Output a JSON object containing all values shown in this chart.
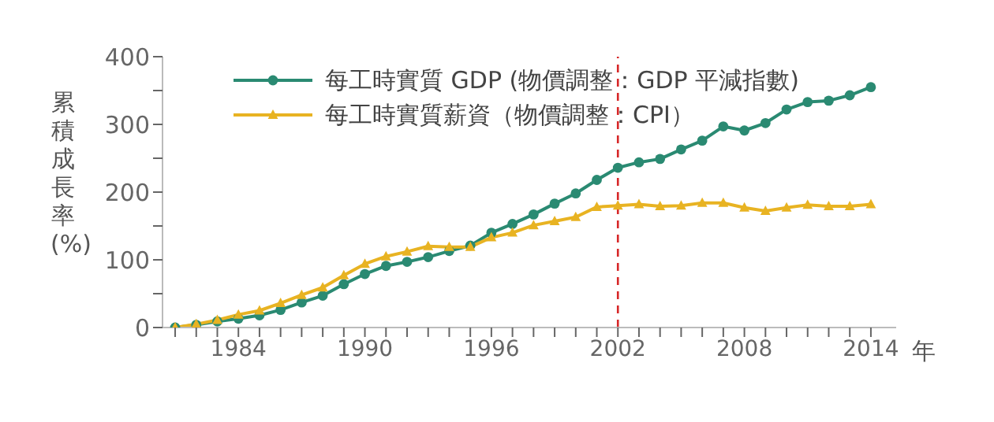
{
  "chart_data": {
    "type": "line",
    "x": [
      1981,
      1982,
      1983,
      1984,
      1985,
      1986,
      1987,
      1988,
      1989,
      1990,
      1991,
      1992,
      1993,
      1994,
      1995,
      1996,
      1997,
      1998,
      1999,
      2000,
      2001,
      2002,
      2003,
      2004,
      2005,
      2006,
      2007,
      2008,
      2009,
      2010,
      2011,
      2012,
      2013,
      2014
    ],
    "series": [
      {
        "name": "每工時實質 GDP (物價調整：GDP 平減指數)",
        "color": "#2a8a72",
        "marker": "circle",
        "values": [
          0,
          4,
          9,
          13,
          18,
          26,
          37,
          47,
          64,
          79,
          91,
          97,
          104,
          113,
          121,
          140,
          153,
          167,
          183,
          198,
          218,
          236,
          244,
          249,
          263,
          276,
          297,
          291,
          302,
          322,
          333,
          335,
          343,
          355
        ]
      },
      {
        "name": "每工時實質薪資（物價調整：CPI）",
        "color": "#e8b322",
        "marker": "triangle",
        "values": [
          0,
          5,
          11,
          19,
          25,
          36,
          48,
          59,
          77,
          94,
          105,
          112,
          120,
          119,
          119,
          133,
          140,
          151,
          157,
          163,
          178,
          180,
          182,
          179,
          180,
          184,
          184,
          177,
          172,
          177,
          181,
          179,
          179,
          182
        ]
      }
    ],
    "xlabel": "年",
    "ylabel": "累積成長率 (%)",
    "xlim": [
      1980.4,
      2015.2
    ],
    "xticks": [
      {
        "value": 1981,
        "label": null
      },
      {
        "value": 1982,
        "label": null
      },
      {
        "value": 1983,
        "label": null
      },
      1984,
      {
        "value": 1985,
        "label": null
      },
      {
        "value": 1986,
        "label": null
      },
      {
        "value": 1987,
        "label": null
      },
      {
        "value": 1988,
        "label": null
      },
      {
        "value": 1989,
        "label": null
      },
      1990,
      {
        "value": 1991,
        "label": null
      },
      {
        "value": 1992,
        "label": null
      },
      {
        "value": 1993,
        "label": null
      },
      {
        "value": 1994,
        "label": null
      },
      {
        "value": 1995,
        "label": null
      },
      1996,
      {
        "value": 1997,
        "label": null
      },
      {
        "value": 1998,
        "label": null
      },
      {
        "value": 1999,
        "label": null
      },
      {
        "value": 2000,
        "label": null
      },
      {
        "value": 2001,
        "label": null
      },
      2002,
      {
        "value": 2003,
        "label": null
      },
      {
        "value": 2004,
        "label": null
      },
      {
        "value": 2005,
        "label": null
      },
      {
        "value": 2006,
        "label": null
      },
      {
        "value": 2007,
        "label": null
      },
      2008,
      {
        "value": 2009,
        "label": null
      },
      {
        "value": 2010,
        "label": null
      },
      {
        "value": 2011,
        "label": null
      },
      {
        "value": 2012,
        "label": null
      },
      {
        "value": 2013,
        "label": null
      },
      2014
    ],
    "ylim": [
      0,
      400
    ],
    "yticks": [
      0,
      {
        "value": 50,
        "label": null
      },
      100,
      {
        "value": 150,
        "label": null
      },
      200,
      {
        "value": 250,
        "label": null
      },
      300,
      {
        "value": 350,
        "label": null
      },
      400
    ],
    "ref_lines": [
      {
        "axis": "x",
        "value": 2002,
        "color": "#d62728",
        "line_style": "dashed"
      }
    ],
    "grid": false,
    "legend": "top",
    "line_style": "solid"
  }
}
